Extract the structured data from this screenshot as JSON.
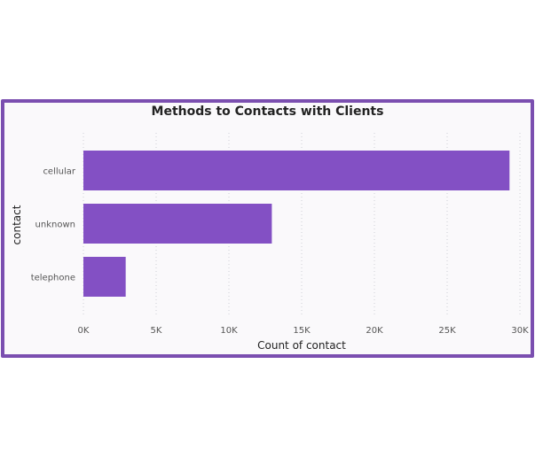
{
  "chart_data": {
    "type": "bar",
    "orientation": "horizontal",
    "title": "Methods to Contacts with Clients",
    "xlabel": "Count of contact",
    "ylabel": "contact",
    "categories": [
      "cellular",
      "unknown",
      "telephone"
    ],
    "values": [
      29285,
      12950,
      2906
    ],
    "xlim": [
      0,
      30000
    ],
    "xticks": [
      0,
      5000,
      10000,
      15000,
      20000,
      25000,
      30000
    ],
    "xtick_labels": [
      "0K",
      "5K",
      "10K",
      "15K",
      "20K",
      "25K",
      "30K"
    ],
    "grid": "vertical-dotted",
    "bar_color": "#8350c4"
  }
}
